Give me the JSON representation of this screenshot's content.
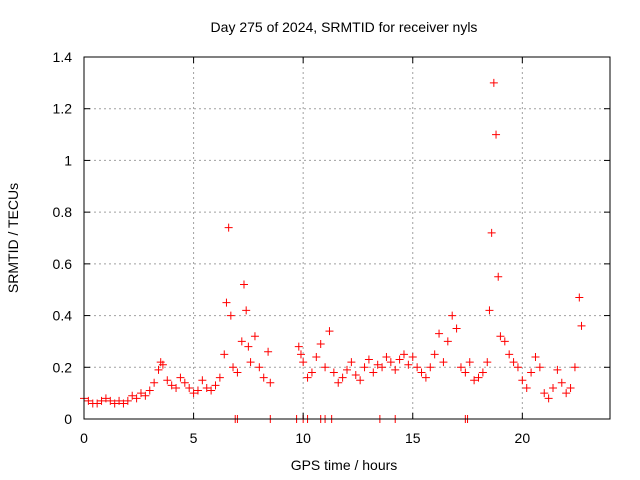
{
  "chart_data": {
    "type": "scatter",
    "title": "Day 275 of 2024, SRMTID for receiver nyls",
    "xlabel": "GPS time / hours",
    "ylabel": "SRMTID / TECUs",
    "xlim": [
      0,
      24
    ],
    "ylim": [
      0,
      1.4
    ],
    "xticks": [
      0,
      5,
      10,
      15,
      20
    ],
    "xtick_labels": [
      "0",
      "5",
      "10",
      "15",
      "20"
    ],
    "yticks": [
      0,
      0.2,
      0.4,
      0.6,
      0.8,
      1.0,
      1.2,
      1.4
    ],
    "ytick_labels": [
      "0",
      "0.2",
      "0.4",
      "0.6",
      "0.8",
      "1",
      "1.2",
      "1.4"
    ],
    "grid": true,
    "marker": "plus",
    "color": "#ff0000",
    "series": [
      {
        "name": "SRMTID nyls",
        "x": [
          0.0,
          0.2,
          0.4,
          0.6,
          0.8,
          1.0,
          1.2,
          1.4,
          1.6,
          1.8,
          2.0,
          2.2,
          2.4,
          2.6,
          2.8,
          3.0,
          3.2,
          3.4,
          3.5,
          3.6,
          3.8,
          4.0,
          4.2,
          4.4,
          4.6,
          4.8,
          5.0,
          5.2,
          5.4,
          5.6,
          5.8,
          6.0,
          6.2,
          6.4,
          6.5,
          6.6,
          6.7,
          6.8,
          7.0,
          7.2,
          7.3,
          7.4,
          7.5,
          7.6,
          7.8,
          8.0,
          8.2,
          8.4,
          8.5,
          9.8,
          9.9,
          10.0,
          10.2,
          10.4,
          10.6,
          10.8,
          11.0,
          11.2,
          11.4,
          11.6,
          11.8,
          12.0,
          12.2,
          12.4,
          12.6,
          12.8,
          13.0,
          13.2,
          13.4,
          13.6,
          13.8,
          14.0,
          14.2,
          14.4,
          14.6,
          14.8,
          15.0,
          15.2,
          15.4,
          15.6,
          15.8,
          16.0,
          16.2,
          16.4,
          16.6,
          16.8,
          17.0,
          17.2,
          17.4,
          17.6,
          17.8,
          18.0,
          18.2,
          18.4,
          18.5,
          18.6,
          18.7,
          18.8,
          18.9,
          19.0,
          19.2,
          19.4,
          19.6,
          19.8,
          20.0,
          20.2,
          20.4,
          20.6,
          20.8,
          21.0,
          21.2,
          21.4,
          21.6,
          21.8,
          22.0,
          22.2,
          22.4,
          22.6,
          22.7,
          6.9,
          7.0,
          8.5,
          9.7,
          10.0,
          10.2,
          10.8,
          11.0,
          11.3,
          13.5,
          14.2,
          17.4,
          17.5
        ],
        "y": [
          0.08,
          0.07,
          0.06,
          0.06,
          0.07,
          0.08,
          0.07,
          0.06,
          0.07,
          0.06,
          0.07,
          0.09,
          0.08,
          0.1,
          0.09,
          0.11,
          0.14,
          0.19,
          0.22,
          0.21,
          0.15,
          0.13,
          0.12,
          0.16,
          0.14,
          0.12,
          0.1,
          0.11,
          0.15,
          0.12,
          0.11,
          0.13,
          0.16,
          0.25,
          0.45,
          0.74,
          0.4,
          0.2,
          0.18,
          0.3,
          0.52,
          0.42,
          0.28,
          0.22,
          0.32,
          0.2,
          0.16,
          0.26,
          0.14,
          0.28,
          0.25,
          0.22,
          0.16,
          0.18,
          0.24,
          0.29,
          0.2,
          0.34,
          0.18,
          0.14,
          0.16,
          0.19,
          0.22,
          0.17,
          0.15,
          0.2,
          0.23,
          0.18,
          0.21,
          0.2,
          0.24,
          0.22,
          0.19,
          0.23,
          0.25,
          0.21,
          0.24,
          0.2,
          0.18,
          0.16,
          0.2,
          0.25,
          0.33,
          0.22,
          0.3,
          0.4,
          0.35,
          0.2,
          0.18,
          0.22,
          0.15,
          0.16,
          0.18,
          0.22,
          0.42,
          0.72,
          1.3,
          1.1,
          0.55,
          0.32,
          0.3,
          0.25,
          0.22,
          0.2,
          0.15,
          0.12,
          0.18,
          0.24,
          0.2,
          0.1,
          0.08,
          0.12,
          0.19,
          0.14,
          0.1,
          0.12,
          0.2,
          0.47,
          0.36,
          0.0,
          0.0,
          0.0,
          0.0,
          0.0,
          0.0,
          0.0,
          0.0,
          0.0,
          0.0,
          0.0,
          0.0,
          0.0
        ]
      }
    ]
  }
}
